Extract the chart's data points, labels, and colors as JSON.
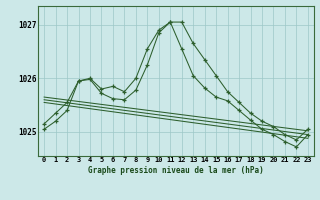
{
  "title": "Graphe pression niveau de la mer (hPa)",
  "bg_color": "#cce8e8",
  "grid_color": "#9dc8c8",
  "line_color": "#2d5f2d",
  "xlim": [
    -0.5,
    23.5
  ],
  "ylim": [
    1024.55,
    1027.35
  ],
  "yticks": [
    1025,
    1026,
    1027
  ],
  "xtick_labels": [
    "0",
    "1",
    "2",
    "3",
    "4",
    "5",
    "6",
    "7",
    "8",
    "9",
    "10",
    "11",
    "12",
    "13",
    "14",
    "15",
    "16",
    "17",
    "18",
    "19",
    "20",
    "21",
    "22",
    "23"
  ],
  "series1_x": [
    0,
    1,
    2,
    3,
    4,
    5,
    6,
    7,
    8,
    9,
    10,
    11,
    12,
    13,
    14,
    15,
    16,
    17,
    18,
    19,
    20,
    21,
    22,
    23
  ],
  "series1_y": [
    1025.15,
    1025.35,
    1025.55,
    1025.95,
    1026.0,
    1025.8,
    1025.85,
    1025.75,
    1026.0,
    1026.55,
    1026.9,
    1027.05,
    1027.05,
    1026.65,
    1026.35,
    1026.05,
    1025.75,
    1025.55,
    1025.35,
    1025.2,
    1025.1,
    1024.95,
    1024.85,
    1025.05
  ],
  "series2_x": [
    0,
    1,
    2,
    3,
    4,
    5,
    6,
    7,
    8,
    9,
    10,
    11,
    12,
    13,
    14,
    15,
    16,
    17,
    18,
    19,
    20,
    21,
    22,
    23
  ],
  "series2_y": [
    1025.05,
    1025.2,
    1025.4,
    1025.95,
    1025.98,
    1025.72,
    1025.62,
    1025.6,
    1025.78,
    1026.25,
    1026.85,
    1027.05,
    1026.55,
    1026.05,
    1025.82,
    1025.65,
    1025.58,
    1025.4,
    1025.22,
    1025.05,
    1024.95,
    1024.82,
    1024.72,
    1024.95
  ],
  "line1_x": [
    0,
    23
  ],
  "line1_y": [
    1025.65,
    1025.02
  ],
  "line2_x": [
    0,
    23
  ],
  "line2_y": [
    1025.6,
    1024.95
  ],
  "line3_x": [
    0,
    23
  ],
  "line3_y": [
    1025.55,
    1024.88
  ]
}
